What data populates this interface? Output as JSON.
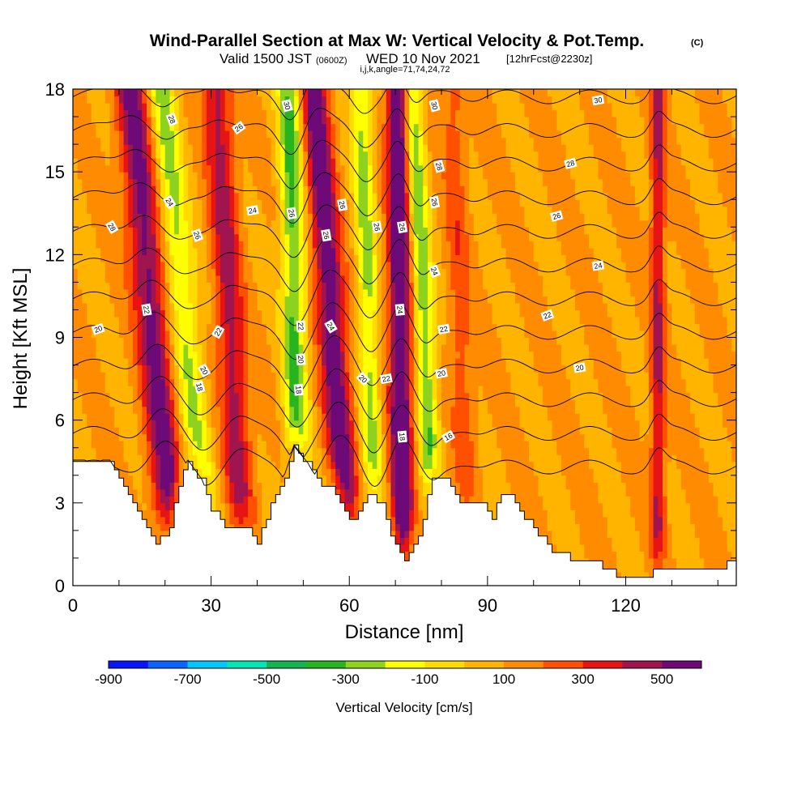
{
  "chart_data": {
    "type": "heatmap",
    "title": "Wind-Parallel Section at Max W: Vertical Velocity & Pot.Temp.",
    "title_mark": "(C)",
    "subtitle": {
      "valid": "Valid 1500 JST",
      "utc": "(0600Z)",
      "date": "WED 10 Nov 2021",
      "forecast": "[12hrFcst@2230z]",
      "indices": "i,j,k,angle=71,74,24,72"
    },
    "xlabel": "Distance [nm]",
    "ylabel": "Height [Kft MSL]",
    "xlim": [
      0,
      144
    ],
    "ylim": [
      0,
      18
    ],
    "x_ticks": [
      0,
      30,
      60,
      90,
      120
    ],
    "y_ticks": [
      0,
      3,
      6,
      9,
      12,
      15,
      18
    ],
    "x_minor_step": 10,
    "y_minor_step": 1,
    "colorbar": {
      "label": "Vertical Velocity [cm/s]",
      "min": -900,
      "max": 600,
      "step": 100,
      "tick_labels": [
        "-900",
        "-700",
        "-500",
        "-300",
        "-100",
        "100",
        "300",
        "500"
      ],
      "colors": [
        "#0a14ff",
        "#0a64ff",
        "#00c8ff",
        "#00e6b4",
        "#14b450",
        "#28b41e",
        "#8cd21e",
        "#ffff00",
        "#ffdc00",
        "#ffb400",
        "#ff8c00",
        "#ff5000",
        "#e61414",
        "#a01450",
        "#6e0a78"
      ]
    },
    "velocity_bands": [
      {
        "x": 17,
        "w": 450,
        "tilt": -0.55,
        "width": 3.5
      },
      {
        "x": 24,
        "w": -330,
        "tilt": -0.6,
        "width": 3.0
      },
      {
        "x": 34,
        "w": 350,
        "tilt": -0.35,
        "width": 3.0
      },
      {
        "x": 48,
        "w": -420,
        "tilt": -0.12,
        "width": 2.6
      },
      {
        "x": 56,
        "w": 500,
        "tilt": -0.45,
        "width": 3.0
      },
      {
        "x": 64,
        "w": -330,
        "tilt": -0.18,
        "width": 2.2
      },
      {
        "x": 71,
        "w": 600,
        "tilt": -0.05,
        "width": 2.4
      },
      {
        "x": 76,
        "w": -380,
        "tilt": -0.3,
        "width": 2.2
      },
      {
        "x": 84,
        "w": 160,
        "tilt": -0.2,
        "width": 2.5
      },
      {
        "x": 127,
        "w": 320,
        "tilt": 0.0,
        "width": 1.6
      }
    ],
    "terrain_height": [
      [
        0,
        4.5
      ],
      [
        8,
        4.5
      ],
      [
        10,
        4.0
      ],
      [
        12,
        3.3
      ],
      [
        14,
        2.6
      ],
      [
        16,
        2.0
      ],
      [
        18,
        1.6
      ],
      [
        21,
        2.0
      ],
      [
        23,
        3.7
      ],
      [
        25,
        4.5
      ],
      [
        28,
        3.8
      ],
      [
        30,
        2.8
      ],
      [
        34,
        2.0
      ],
      [
        38,
        2.0
      ],
      [
        40,
        1.6
      ],
      [
        43,
        2.9
      ],
      [
        46,
        4.0
      ],
      [
        48,
        5.0
      ],
      [
        51,
        4.4
      ],
      [
        53,
        3.8
      ],
      [
        57,
        3.4
      ],
      [
        59,
        2.6
      ],
      [
        61,
        2.3
      ],
      [
        64,
        3.3
      ],
      [
        67,
        3.0
      ],
      [
        70,
        1.4
      ],
      [
        72,
        0.8
      ],
      [
        75,
        1.9
      ],
      [
        78,
        3.8
      ],
      [
        81,
        3.9
      ],
      [
        84,
        2.9
      ],
      [
        86,
        2.9
      ],
      [
        89,
        2.9
      ],
      [
        91,
        2.5
      ],
      [
        93,
        3.2
      ],
      [
        95,
        3.3
      ],
      [
        98,
        2.5
      ],
      [
        100,
        2.0
      ],
      [
        104,
        1.3
      ],
      [
        109,
        0.9
      ],
      [
        113,
        0.9
      ],
      [
        116,
        0.5
      ],
      [
        120,
        0.3
      ],
      [
        124,
        0.3
      ],
      [
        127,
        0.6
      ],
      [
        130,
        0.7
      ],
      [
        137,
        0.7
      ],
      [
        141,
        0.7
      ],
      [
        144,
        1.0
      ]
    ],
    "theta_levels": [
      16,
      17,
      18,
      19,
      20,
      21,
      22,
      23,
      24,
      25,
      26,
      27,
      28,
      29,
      30,
      31
    ],
    "contour_labels": [
      {
        "text": "28",
        "x": 21.5,
        "y": 16.9,
        "angle": 70
      },
      {
        "text": "26",
        "x": 36,
        "y": 16.6,
        "angle": -35
      },
      {
        "text": "24",
        "x": 21,
        "y": 13.9,
        "angle": 60
      },
      {
        "text": "26",
        "x": 27,
        "y": 12.7,
        "angle": 70
      },
      {
        "text": "24",
        "x": 39,
        "y": 13.6,
        "angle": -10
      },
      {
        "text": "28",
        "x": 8.5,
        "y": 13.0,
        "angle": 60
      },
      {
        "text": "30",
        "x": 46.5,
        "y": 17.4,
        "angle": 75
      },
      {
        "text": "30",
        "x": 78.5,
        "y": 17.4,
        "angle": 75
      },
      {
        "text": "30",
        "x": 114,
        "y": 17.6,
        "angle": -10
      },
      {
        "text": "28",
        "x": 79.5,
        "y": 15.2,
        "angle": 75
      },
      {
        "text": "28",
        "x": 108,
        "y": 15.3,
        "angle": -15
      },
      {
        "text": "26",
        "x": 47.5,
        "y": 13.5,
        "angle": 80
      },
      {
        "text": "26",
        "x": 58.5,
        "y": 13.8,
        "angle": 80
      },
      {
        "text": "26",
        "x": 55,
        "y": 12.7,
        "angle": 80
      },
      {
        "text": "26",
        "x": 66,
        "y": 13.0,
        "angle": 80
      },
      {
        "text": "26",
        "x": 71.5,
        "y": 13.0,
        "angle": 80
      },
      {
        "text": "26",
        "x": 78.5,
        "y": 13.9,
        "angle": 80
      },
      {
        "text": "26",
        "x": 105,
        "y": 13.4,
        "angle": -15
      },
      {
        "text": "24",
        "x": 78.5,
        "y": 11.4,
        "angle": 70
      },
      {
        "text": "24",
        "x": 71,
        "y": 10.0,
        "angle": 85
      },
      {
        "text": "24",
        "x": 56,
        "y": 9.4,
        "angle": 60
      },
      {
        "text": "24",
        "x": 114,
        "y": 11.6,
        "angle": -10
      },
      {
        "text": "22",
        "x": 16,
        "y": 10.0,
        "angle": 80
      },
      {
        "text": "22",
        "x": 31.5,
        "y": 9.2,
        "angle": -60
      },
      {
        "text": "22",
        "x": 49.5,
        "y": 9.4,
        "angle": 85
      },
      {
        "text": "22",
        "x": 80.5,
        "y": 9.3,
        "angle": -10
      },
      {
        "text": "22",
        "x": 103,
        "y": 9.8,
        "angle": -20
      },
      {
        "text": "22",
        "x": 68,
        "y": 7.5,
        "angle": -10
      },
      {
        "text": "20",
        "x": 5.5,
        "y": 9.3,
        "angle": -20
      },
      {
        "text": "20",
        "x": 28.5,
        "y": 7.8,
        "angle": 60
      },
      {
        "text": "20",
        "x": 49.5,
        "y": 8.2,
        "angle": 85
      },
      {
        "text": "20",
        "x": 63,
        "y": 7.5,
        "angle": 45
      },
      {
        "text": "20",
        "x": 80,
        "y": 7.7,
        "angle": -10
      },
      {
        "text": "20",
        "x": 110,
        "y": 7.9,
        "angle": -10
      },
      {
        "text": "18",
        "x": 27.5,
        "y": 7.2,
        "angle": 75
      },
      {
        "text": "18",
        "x": 49,
        "y": 7.1,
        "angle": 85
      },
      {
        "text": "18",
        "x": 71.5,
        "y": 5.4,
        "angle": 85
      },
      {
        "text": "16",
        "x": 81.5,
        "y": 5.4,
        "angle": -30
      }
    ]
  }
}
